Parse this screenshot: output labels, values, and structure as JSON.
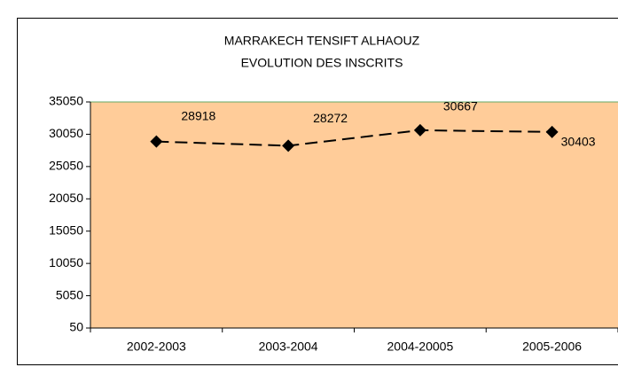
{
  "chart_data": {
    "type": "line",
    "title": [
      "MARRAKECH TENSIFT ALHAOUZ",
      "EVOLUTION DES INSCRITS"
    ],
    "categories": [
      "2002-2003",
      "2003-2004",
      "2004-20005",
      "2005-2006"
    ],
    "values": [
      28918,
      28272,
      30667,
      30403
    ],
    "color": "#000000",
    "plot_background": "#ffcc99",
    "ylim": [
      50,
      35050
    ],
    "yticks": [
      50,
      5050,
      10050,
      15050,
      20050,
      25050,
      30050,
      35050
    ],
    "data_labels": true
  }
}
